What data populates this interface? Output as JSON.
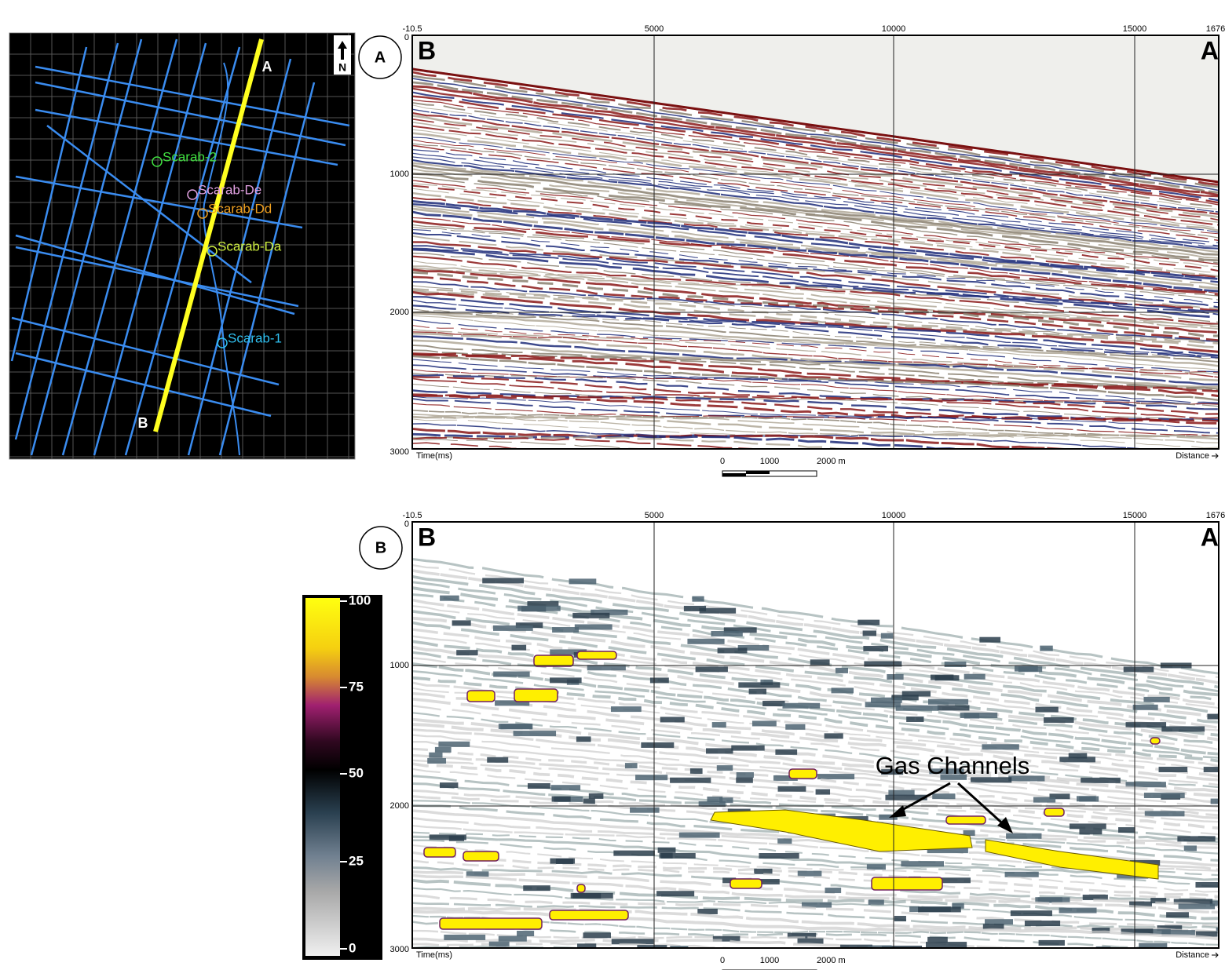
{
  "map": {
    "line_labels": [
      "A",
      "B"
    ],
    "north": "N",
    "wells": [
      "Scarab-2",
      "Scarab-De",
      "Scarab-Dd",
      "Scarab-Da",
      "Scarab-1"
    ]
  },
  "panels": [
    {
      "label": "A",
      "left_end": "B",
      "right_end": "A",
      "x_ticks": [
        "-10.5",
        "5000",
        "10000",
        "15000",
        "1676"
      ],
      "y_ticks": [
        "0",
        "1000",
        "2000",
        "3000"
      ],
      "y_axis_label": "Time(ms)",
      "x_axis_label": "Distance",
      "scale_labels": [
        "0",
        "1000",
        "2000 m"
      ]
    },
    {
      "label": "B",
      "left_end": "B",
      "right_end": "A",
      "x_ticks": [
        "-10.5",
        "5000",
        "10000",
        "15000",
        "1676"
      ],
      "y_ticks": [
        "0",
        "1000",
        "2000",
        "3000"
      ],
      "y_axis_label": "Time(ms)",
      "x_axis_label": "Distance",
      "scale_labels": [
        "0",
        "1000",
        "2000 m"
      ]
    }
  ],
  "colorbar": {
    "ticks": [
      "100",
      "75",
      "50",
      "25",
      "0"
    ]
  },
  "annotation": "Gas Channels"
}
